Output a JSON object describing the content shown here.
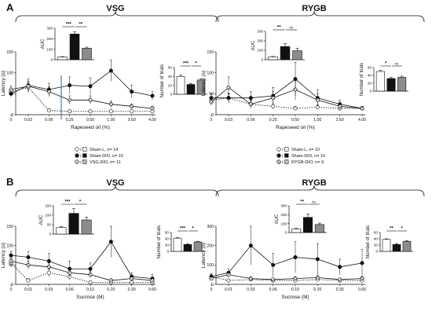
{
  "panels": [
    {
      "letter": "A",
      "title": "VSG"
    },
    {
      "letter": "",
      "title": "RYGB"
    },
    {
      "letter": "B",
      "title": "VSG"
    },
    {
      "letter": "",
      "title": "RYGB"
    }
  ],
  "legends": [
    {
      "entries": [
        {
          "label": "Sham-L, n= 14",
          "style": "open"
        },
        {
          "label": "Sham-DIO, n= 15",
          "style": "filled"
        },
        {
          "label": "VSG-DIO, n= 11",
          "style": "hatched"
        }
      ]
    },
    {
      "entries": [
        {
          "label": "Sham-L, n= 10",
          "style": "open"
        },
        {
          "label": "Sham-DIO, n= 10",
          "style": "filled"
        },
        {
          "label": "RYGB-DIO, n= 9",
          "style": "hatched"
        }
      ]
    }
  ],
  "colors": {
    "sham_l": "#ffffff",
    "sham_dio": "#111111",
    "surgery": "#8c8c8c",
    "marker_line": "#4a78c0"
  },
  "chart_data": [
    {
      "type": "line",
      "panel": "A-VSG",
      "xlabel": "Rapeseed oil (%)",
      "ylabel": "Latency (s)",
      "categories": [
        "0",
        "0.03",
        "0.06",
        "0.25",
        "0.50",
        "1.00",
        "2.50",
        "4.00"
      ],
      "ylim": [
        0,
        150
      ],
      "yticks": [
        0,
        50,
        100,
        150
      ],
      "series": [
        {
          "name": "Sham-L",
          "values": [
            55,
            65,
            10,
            8,
            8,
            8,
            8,
            8
          ],
          "errors": [
            8,
            12,
            4,
            3,
            3,
            3,
            3,
            3
          ],
          "marker": "open",
          "dashed": true
        },
        {
          "name": "Sham-DIO",
          "values": [
            50,
            70,
            60,
            70,
            68,
            105,
            55,
            45
          ],
          "errors": [
            8,
            15,
            15,
            20,
            20,
            25,
            15,
            10
          ],
          "marker": "filled",
          "dashed": false
        },
        {
          "name": "VSG-DIO",
          "values": [
            60,
            68,
            55,
            35,
            35,
            25,
            20,
            15
          ],
          "errors": [
            8,
            12,
            12,
            10,
            10,
            8,
            6,
            5
          ],
          "marker": "hatched",
          "dashed": false
        }
      ],
      "auc": {
        "ylabel": "AUC",
        "yticks": [
          "0",
          "100",
          "200",
          "300"
        ],
        "ymax": 300,
        "values": [
          25,
          245,
          110
        ],
        "errors": [
          5,
          20,
          10
        ],
        "sig": [
          "***",
          "**"
        ]
      },
      "trials": {
        "ylabel": "Number of trials",
        "yticks": [
          "0",
          "20",
          "40",
          "60"
        ],
        "ymax": 60,
        "values": [
          40,
          22,
          32
        ],
        "errors": [
          3,
          2,
          3
        ],
        "sig": [
          "***",
          "*"
        ]
      }
    },
    {
      "type": "line",
      "panel": "A-RYGB",
      "xlabel": "Rapeseed oil (%)",
      "ylabel": "Latency (s)",
      "categories": [
        "0",
        "0.03",
        "0.06",
        "0.25",
        "0.50",
        "1.00",
        "2.50",
        "4.00"
      ],
      "ylim": [
        0,
        150
      ],
      "yticks": [
        0,
        50,
        100,
        150
      ],
      "series": [
        {
          "name": "Sham-L",
          "values": [
            35,
            40,
            25,
            20,
            15,
            18,
            15,
            15
          ],
          "errors": [
            8,
            10,
            8,
            6,
            5,
            5,
            5,
            5
          ],
          "marker": "open",
          "dashed": true
        },
        {
          "name": "Sham-DIO",
          "values": [
            40,
            40,
            40,
            45,
            85,
            40,
            25,
            15
          ],
          "errors": [
            10,
            12,
            15,
            20,
            40,
            20,
            10,
            5
          ],
          "marker": "filled",
          "dashed": false
        },
        {
          "name": "RYGB-DIO",
          "values": [
            30,
            65,
            25,
            40,
            60,
            35,
            20,
            15
          ],
          "errors": [
            8,
            25,
            10,
            15,
            25,
            15,
            8,
            5
          ],
          "marker": "hatched",
          "dashed": false
        }
      ],
      "auc": {
        "ylabel": "AUC",
        "yticks": [
          "0",
          "100",
          "200",
          "300"
        ],
        "ymax": 300,
        "values": [
          30,
          140,
          95
        ],
        "errors": [
          5,
          30,
          25
        ],
        "sig": [
          "**",
          "ns"
        ]
      },
      "trials": {
        "ylabel": "Number of trials",
        "yticks": [
          "0",
          "20",
          "40",
          "60"
        ],
        "ymax": 60,
        "values": [
          50,
          32,
          35
        ],
        "errors": [
          3,
          3,
          3
        ],
        "sig": [
          "*",
          "ns"
        ]
      }
    },
    {
      "type": "line",
      "panel": "B-VSG",
      "xlabel": "Sucrose (M)",
      "ylabel": "Latency (s)",
      "categories": [
        "0",
        "0.01",
        "0.03",
        "0.06",
        "0.10",
        "0.20",
        "0.30",
        "0.60"
      ],
      "ylim": [
        0,
        150
      ],
      "yticks": [
        0,
        50,
        100,
        150
      ],
      "series": [
        {
          "name": "Sham-L",
          "values": [
            55,
            10,
            30,
            20,
            5,
            5,
            5,
            5
          ],
          "errors": [
            10,
            5,
            10,
            8,
            3,
            3,
            3,
            3
          ],
          "marker": "open",
          "dashed": true
        },
        {
          "name": "Sham-DIO",
          "values": [
            75,
            70,
            60,
            40,
            40,
            110,
            20,
            15
          ],
          "errors": [
            10,
            15,
            20,
            20,
            15,
            40,
            10,
            10
          ],
          "marker": "filled",
          "dashed": false
        },
        {
          "name": "VSG-DIO",
          "values": [
            60,
            50,
            45,
            30,
            25,
            10,
            15,
            10
          ],
          "errors": [
            10,
            10,
            10,
            10,
            8,
            5,
            5,
            5
          ],
          "marker": "hatched",
          "dashed": false
        }
      ],
      "auc": {
        "ylabel": "AUC",
        "yticks": [
          "0",
          "50",
          "100",
          "150"
        ],
        "ymax": 150,
        "values": [
          35,
          110,
          75
        ],
        "errors": [
          5,
          25,
          15
        ],
        "sig": [
          "***",
          "*"
        ]
      },
      "trials": {
        "ylabel": "Number of trials",
        "yticks": [
          "0",
          "20",
          "40",
          "60"
        ],
        "ymax": 60,
        "values": [
          42,
          22,
          30
        ],
        "errors": [
          2,
          2,
          2
        ],
        "sig": [
          "***",
          "*"
        ]
      }
    },
    {
      "type": "line",
      "panel": "B-RYGB",
      "xlabel": "Sucrose (M)",
      "ylabel": "Latency (s)",
      "categories": [
        "0",
        "0.01",
        "0.03",
        "0.06",
        "0.10",
        "0.20",
        "0.30",
        "0.60"
      ],
      "ylim": [
        0,
        300
      ],
      "yticks": [
        0,
        100,
        200,
        300
      ],
      "series": [
        {
          "name": "Sham-L",
          "values": [
            40,
            20,
            25,
            20,
            20,
            25,
            20,
            20
          ],
          "errors": [
            10,
            5,
            8,
            5,
            5,
            8,
            5,
            5
          ],
          "marker": "open",
          "dashed": true
        },
        {
          "name": "Sham-DIO",
          "values": [
            40,
            60,
            200,
            100,
            140,
            130,
            90,
            110
          ],
          "errors": [
            15,
            20,
            100,
            60,
            80,
            80,
            40,
            70
          ],
          "marker": "filled",
          "dashed": false
        },
        {
          "name": "RYGB-DIO",
          "values": [
            30,
            50,
            30,
            25,
            30,
            35,
            25,
            30
          ],
          "errors": [
            10,
            15,
            10,
            8,
            10,
            10,
            8,
            10
          ],
          "marker": "hatched",
          "dashed": false
        }
      ],
      "auc": {
        "ylabel": "AUC",
        "yticks": [
          "0",
          "100",
          "200",
          "300"
        ],
        "ymax": 300,
        "values": [
          40,
          170,
          90
        ],
        "errors": [
          8,
          40,
          15
        ],
        "sig": [
          "**",
          "ns"
        ]
      },
      "trials": {
        "ylabel": "Number of trials",
        "yticks": [
          "0",
          "20",
          "40",
          "60"
        ],
        "ymax": 60,
        "values": [
          38,
          22,
          32
        ],
        "errors": [
          2,
          3,
          2
        ],
        "sig": [
          "**",
          "*"
        ]
      }
    }
  ]
}
